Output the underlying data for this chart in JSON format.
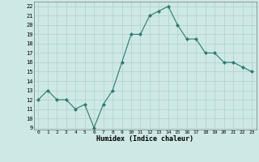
{
  "x": [
    0,
    1,
    2,
    3,
    4,
    5,
    6,
    7,
    8,
    9,
    10,
    11,
    12,
    13,
    14,
    15,
    16,
    17,
    18,
    19,
    20,
    21,
    22,
    23
  ],
  "y": [
    12,
    13,
    12,
    12,
    11,
    11.5,
    9,
    11.5,
    13,
    16,
    19,
    19,
    21,
    21.5,
    22,
    20,
    18.5,
    18.5,
    17,
    17,
    16,
    16,
    15.5,
    15
  ],
  "line_color": "#2d7a6e",
  "marker_color": "#2d7a6e",
  "bg_color": "#cde8e5",
  "grid_color": "#b0d0cc",
  "xlabel": "Humidex (Indice chaleur)",
  "xlim": [
    -0.5,
    23.5
  ],
  "ylim": [
    8.8,
    22.5
  ],
  "yticks": [
    9,
    10,
    11,
    12,
    13,
    14,
    15,
    16,
    17,
    18,
    19,
    20,
    21,
    22
  ],
  "xticks": [
    0,
    1,
    2,
    3,
    4,
    5,
    6,
    7,
    8,
    9,
    10,
    11,
    12,
    13,
    14,
    15,
    16,
    17,
    18,
    19,
    20,
    21,
    22,
    23
  ]
}
